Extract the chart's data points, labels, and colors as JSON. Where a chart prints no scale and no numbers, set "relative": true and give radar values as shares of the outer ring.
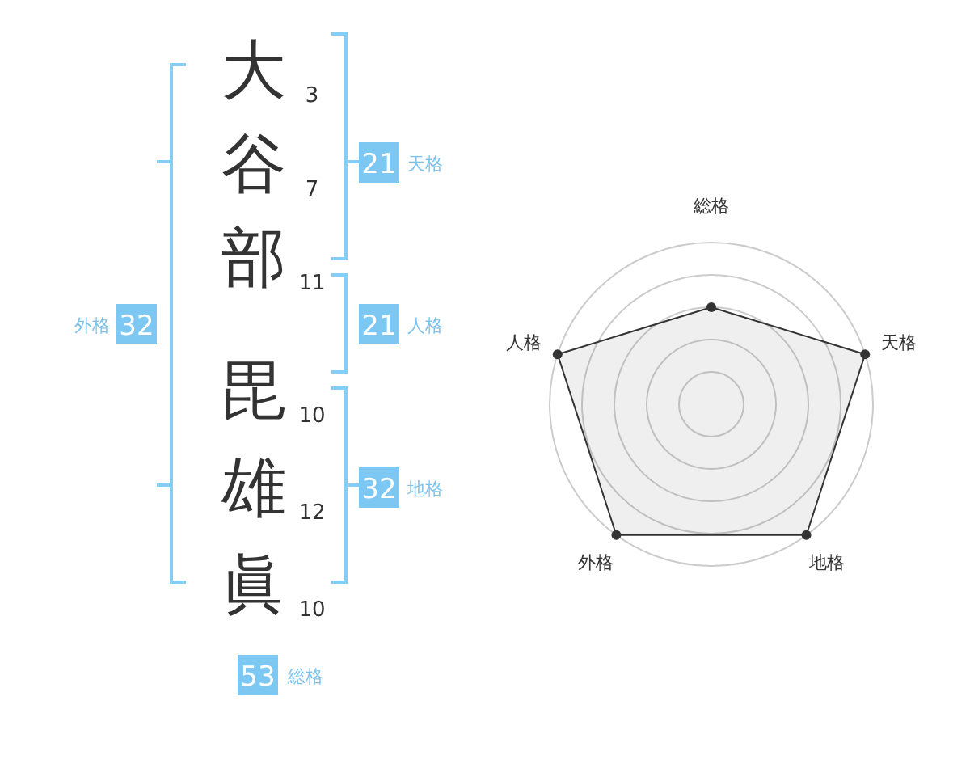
{
  "chart_data": [
    {
      "type": "other",
      "annotations": [
        "大",
        "3",
        "谷",
        "7",
        "部",
        "11",
        "毘",
        "10",
        "雄",
        "12",
        "眞",
        "10",
        "21",
        "天格",
        "21",
        "人格",
        "32",
        "地格",
        "32",
        "外格",
        "53",
        "総格"
      ]
    },
    {
      "type": "radar",
      "relative": true,
      "categories": [
        "総格",
        "天格",
        "地格",
        "外格",
        "人格"
      ],
      "grid": true,
      "marker": "circle",
      "series": [
        {
          "color": "#333333",
          "values": [
            0.6,
            1,
            1,
            1,
            1
          ]
        }
      ]
    }
  ]
}
